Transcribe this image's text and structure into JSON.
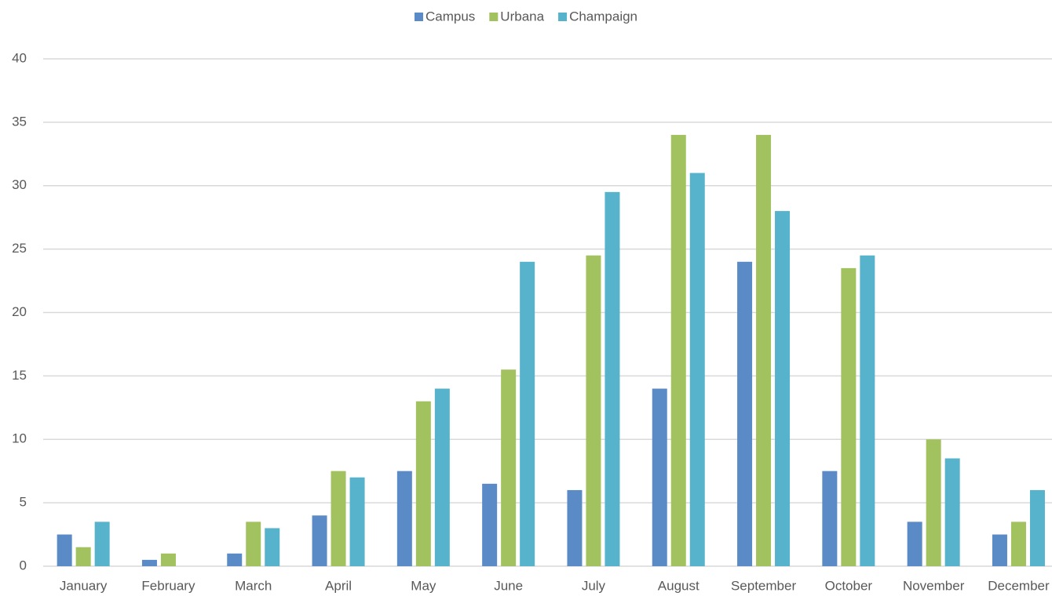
{
  "chart_data": {
    "type": "bar",
    "categories": [
      "January",
      "February",
      "March",
      "April",
      "May",
      "June",
      "July",
      "August",
      "September",
      "October",
      "November",
      "December"
    ],
    "series": [
      {
        "name": "Campus",
        "color": "#5b8bc6",
        "values": [
          2.5,
          0.5,
          1,
          4,
          7.5,
          6.5,
          6,
          14,
          24,
          7.5,
          3.5,
          2.5
        ]
      },
      {
        "name": "Urbana",
        "color": "#a2c15f",
        "values": [
          1.5,
          1,
          3.5,
          7.5,
          13,
          15.5,
          24.5,
          34,
          34,
          23.5,
          10,
          3.5
        ]
      },
      {
        "name": "Champaign",
        "color": "#56b3cb",
        "values": [
          3.5,
          0,
          3,
          7,
          14,
          24,
          29.5,
          31,
          28,
          24.5,
          8.5,
          6
        ]
      }
    ],
    "ylim": [
      0,
      40
    ],
    "yticks": [
      0,
      5,
      10,
      15,
      20,
      25,
      30,
      35,
      40
    ],
    "grid": true,
    "legend": "top"
  }
}
